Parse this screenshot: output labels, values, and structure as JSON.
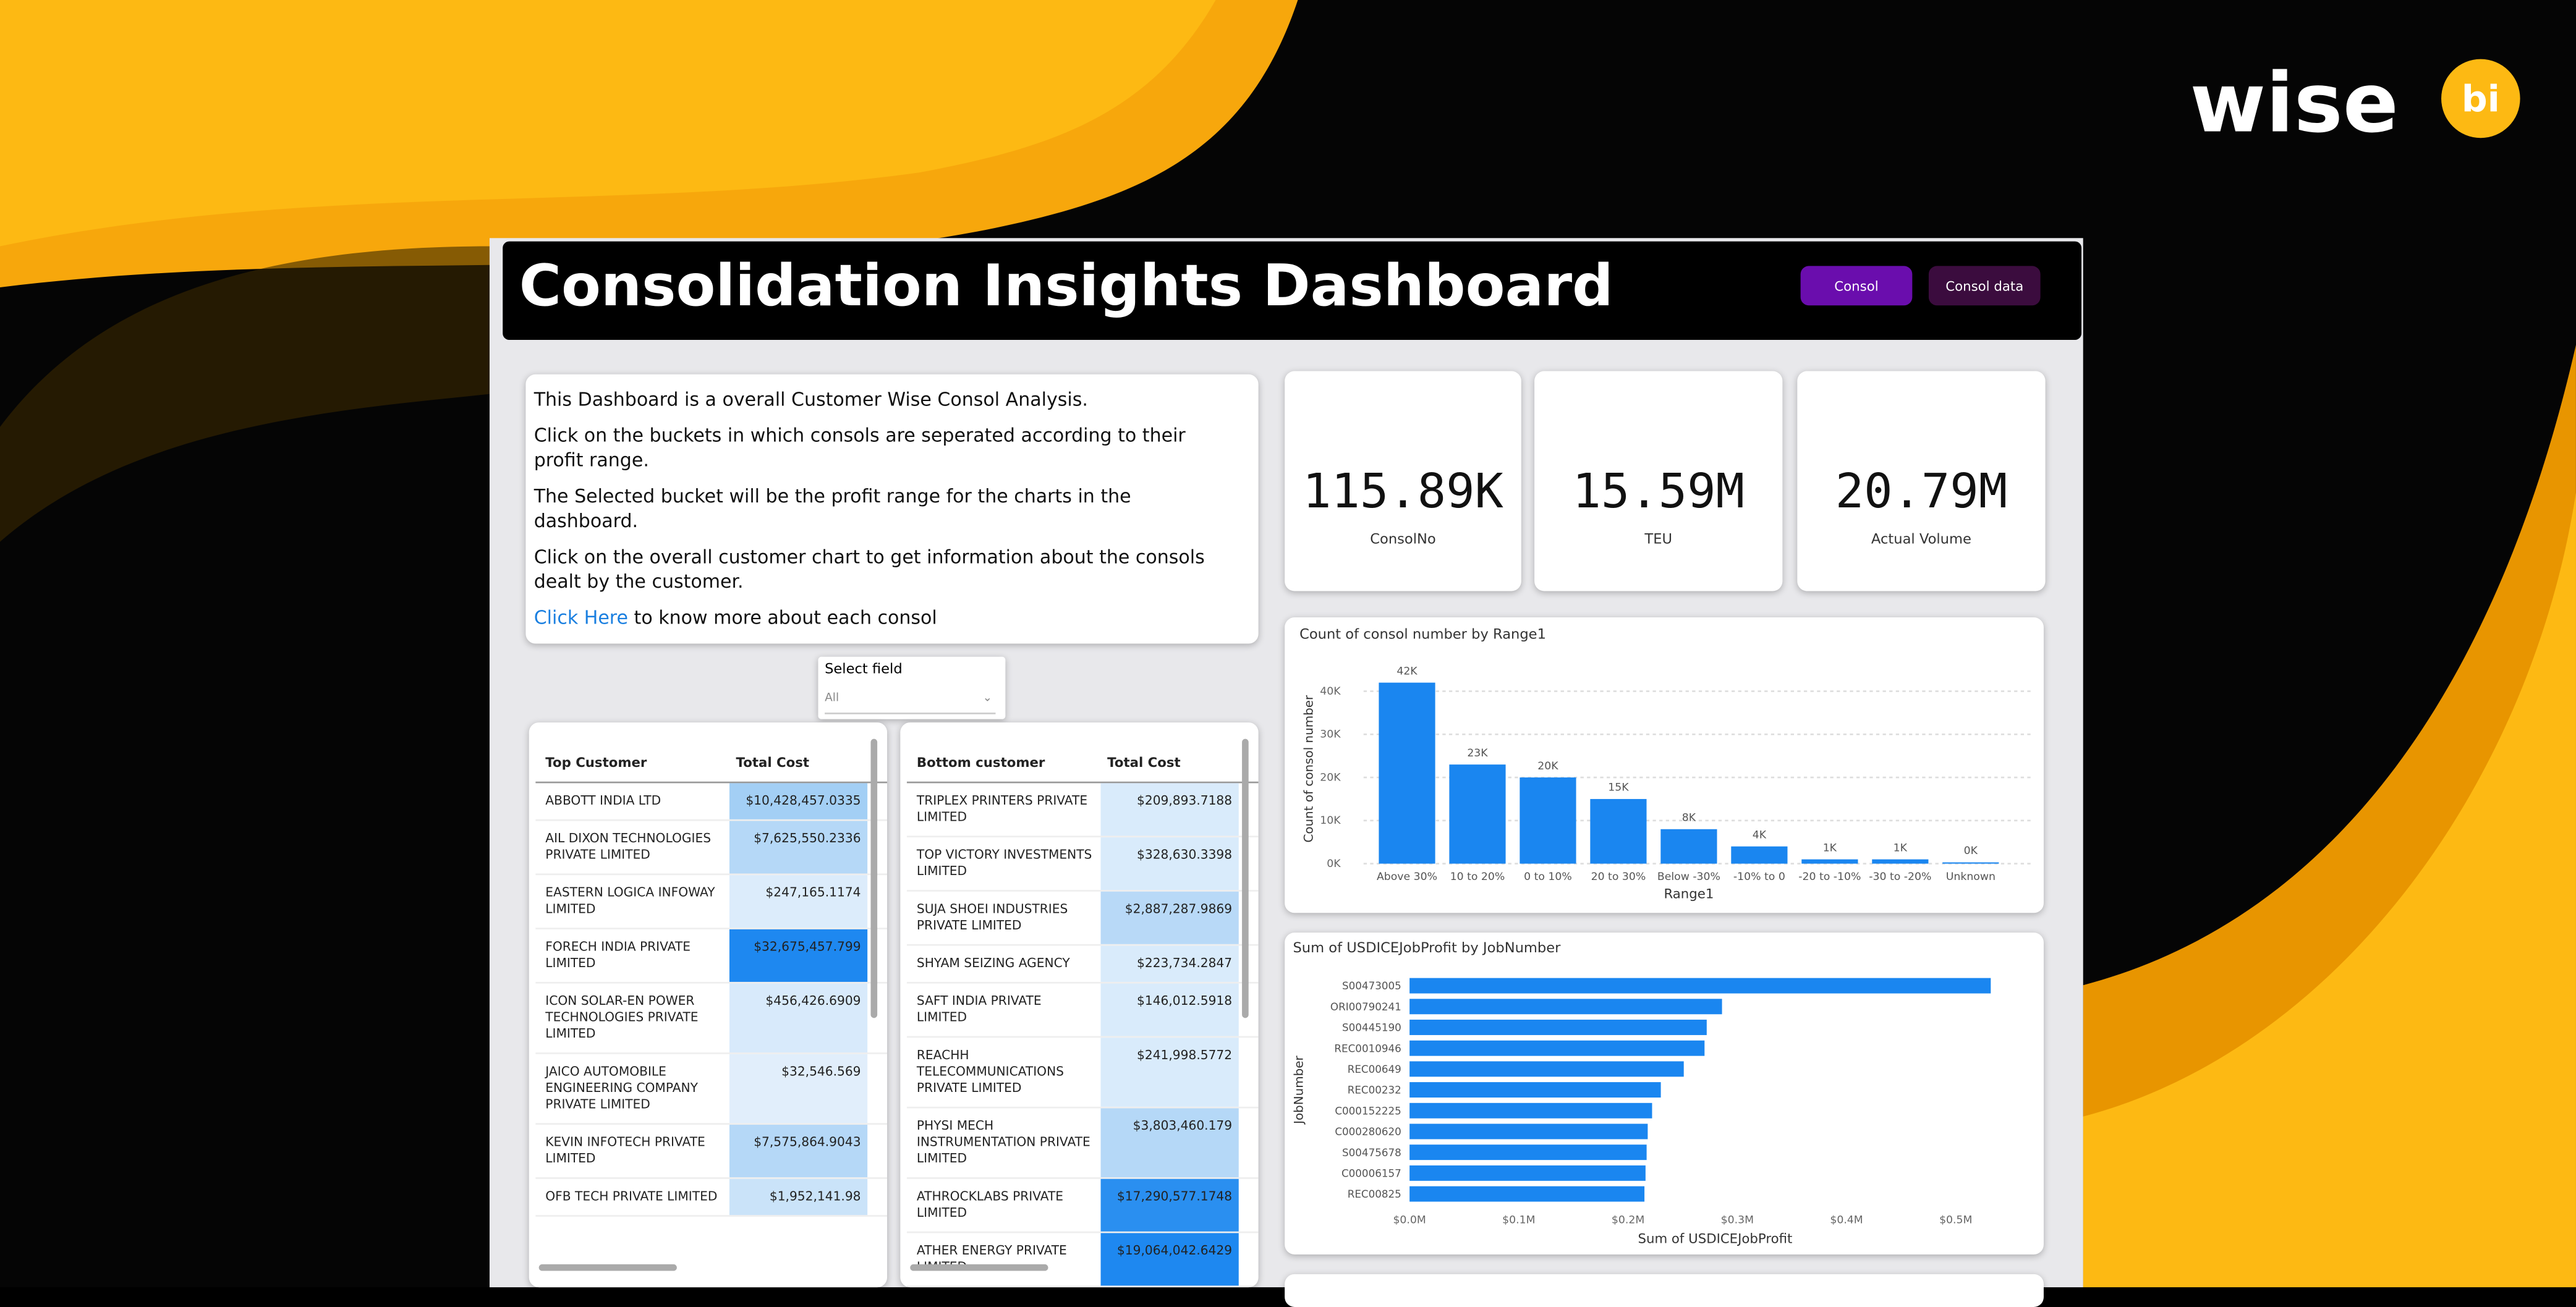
{
  "brand": {
    "name": "wise",
    "badge": "bi"
  },
  "header": {
    "title": "Consolidation Insights Dashboard",
    "buttons": [
      "Consol",
      "Consol data"
    ]
  },
  "description": {
    "paragraphs": [
      "This Dashboard is a overall Customer Wise Consol Analysis.",
      "Click on the buckets in which consols are seperated according to their profit range.",
      "The Selected bucket will be the profit range for the charts in the dashboard.",
      "Click on the overall customer chart to get information about the consols dealt by the customer."
    ],
    "link": "Click Here",
    "link_suffix": "to know more about each consol"
  },
  "filter": {
    "label": "Select field",
    "value": "All"
  },
  "kpis": [
    {
      "value": "115.89K",
      "label": "ConsolNo"
    },
    {
      "value": "15.59M",
      "label": "TEU"
    },
    {
      "value": "20.79M",
      "label": "Actual Volume"
    }
  ],
  "tables": [
    {
      "columns": [
        "Top Customer",
        "Total Cost"
      ],
      "rows": [
        [
          "ABBOTT INDIA LTD",
          "$10,428,457.0335"
        ],
        [
          "AIL DIXON TECHNOLOGIES PRIVATE LIMITED",
          "$7,625,550.2336"
        ],
        [
          "EASTERN LOGICA INFOWAY LIMITED",
          "$247,165.1174"
        ],
        [
          "FORECH INDIA PRIVATE LIMITED",
          "$32,675,457.799"
        ],
        [
          "ICON SOLAR-EN POWER TECHNOLOGIES PRIVATE LIMITED",
          "$456,426.6909"
        ],
        [
          "JAICO AUTOMOBILE ENGINEERING COMPANY PRIVATE LIMITED",
          "$32,546.569"
        ],
        [
          "KEVIN INFOTECH PRIVATE LIMITED",
          "$7,575,864.9043"
        ],
        [
          "OFB TECH PRIVATE LIMITED",
          "$1,952,141.98"
        ]
      ],
      "shades": [
        "#a3cff5",
        "#b5d8f7",
        "#dcecfb",
        "#1e88f0",
        "#d8eafb",
        "#e1eefb",
        "#b5d8f7",
        "#cae3f9"
      ]
    },
    {
      "columns": [
        "Bottom customer",
        "Total Cost"
      ],
      "rows": [
        [
          "TRIPLEX PRINTERS PRIVATE LIMITED",
          "$209,893.7188"
        ],
        [
          "TOP VICTORY INVESTMENTS LIMITED",
          "$328,630.3398"
        ],
        [
          "SUJA SHOEI INDUSTRIES PRIVATE LIMITED",
          "$2,887,287.9869"
        ],
        [
          "SHYAM SEIZING AGENCY",
          "$223,734.2847"
        ],
        [
          "SAFT INDIA PRIVATE LIMITED",
          "$146,012.5918"
        ],
        [
          "REACHH TELECOMMUNICATIONS PRIVATE LIMITED",
          "$241,998.5772"
        ],
        [
          "PHYSI MECH INSTRUMENTATION PRIVATE LIMITED",
          "$3,803,460.179"
        ],
        [
          "ATHROCKLABS PRIVATE LIMITED",
          "$17,290,577.1748"
        ],
        [
          "ATHER ENERGY PRIVATE LIMITED",
          "$19,064,042.6429"
        ]
      ],
      "shades": [
        "#d9ebfb",
        "#d9ebfb",
        "#b8d9f7",
        "#d9ebfb",
        "#d9ebfb",
        "#d9ebfb",
        "#b5d8f7",
        "#2a8ff0",
        "#1e88f0"
      ]
    }
  ],
  "chart_data": [
    {
      "type": "bar",
      "title": "Count of consol number by Range1",
      "x_label": "Range1",
      "y_label": "Count of consol number",
      "color": "#1a86f0",
      "categories": [
        "Above 30%",
        "10 to 20%",
        "0 to 10%",
        "20 to 30%",
        "Below -30%",
        "-10% to 0",
        "-20 to -10%",
        "-30 to -20%",
        "Unknown"
      ],
      "values": [
        42000,
        23000,
        20000,
        15000,
        8000,
        4000,
        1000,
        1000,
        300
      ],
      "value_labels": [
        "42K",
        "23K",
        "20K",
        "15K",
        "8K",
        "4K",
        "1K",
        "1K",
        "0K"
      ],
      "ylim": [
        0,
        44000
      ],
      "yticks": [
        {
          "value": 0,
          "label": "0K"
        },
        {
          "value": 10000,
          "label": "10K"
        },
        {
          "value": 20000,
          "label": "20K"
        },
        {
          "value": 30000,
          "label": "30K"
        },
        {
          "value": 40000,
          "label": "40K"
        }
      ],
      "grid": true
    },
    {
      "type": "barh",
      "title": "Sum of USDICEJobProfit by JobNumber",
      "x_label": "Sum of USDICEJobProfit",
      "y_label": "JobNumber",
      "color": "#1a86f0",
      "categories": [
        "S00473005",
        "ORI00790241",
        "S00445190",
        "REC0010946",
        "REC00649",
        "REC00232",
        "C000152225",
        "C000280620",
        "S00475678",
        "C00006157",
        "REC00825"
      ],
      "values": [
        532000,
        286000,
        272000,
        270000,
        251000,
        230000,
        222000,
        218000,
        217000,
        216000,
        215000
      ],
      "xlim": [
        0,
        560000
      ],
      "xticks": [
        {
          "value": 0,
          "label": "$0.0M"
        },
        {
          "value": 100000,
          "label": "$0.1M"
        },
        {
          "value": 200000,
          "label": "$0.2M"
        },
        {
          "value": 300000,
          "label": "$0.3M"
        },
        {
          "value": 400000,
          "label": "$0.4M"
        },
        {
          "value": 500000,
          "label": "$0.5M"
        }
      ],
      "grid": false
    }
  ]
}
